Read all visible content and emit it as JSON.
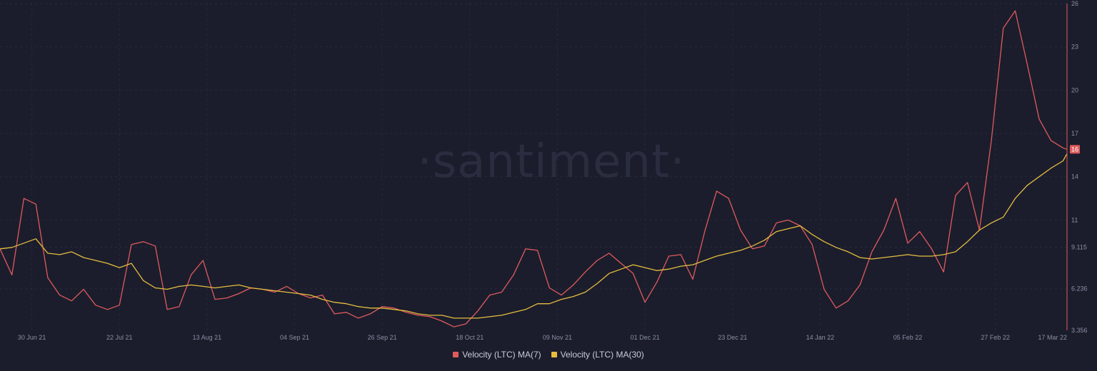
{
  "watermark": "·santiment·",
  "colors": {
    "ma7": "#e05a5d",
    "ma30": "#e5bd3f",
    "background": "#1b1d2c",
    "grid": "#262a3c"
  },
  "chart_data": {
    "type": "line",
    "x": [
      "2021-06-22",
      "2021-06-25",
      "2021-06-28",
      "2021-07-01",
      "2021-07-04",
      "2021-07-07",
      "2021-07-10",
      "2021-07-13",
      "2021-07-16",
      "2021-07-19",
      "2021-07-22",
      "2021-07-25",
      "2021-07-28",
      "2021-07-31",
      "2021-08-03",
      "2021-08-06",
      "2021-08-09",
      "2021-08-12",
      "2021-08-15",
      "2021-08-18",
      "2021-08-21",
      "2021-08-24",
      "2021-08-27",
      "2021-08-30",
      "2021-09-02",
      "2021-09-05",
      "2021-09-08",
      "2021-09-11",
      "2021-09-14",
      "2021-09-17",
      "2021-09-20",
      "2021-09-23",
      "2021-09-26",
      "2021-09-29",
      "2021-10-02",
      "2021-10-05",
      "2021-10-08",
      "2021-10-11",
      "2021-10-14",
      "2021-10-17",
      "2021-10-20",
      "2021-10-23",
      "2021-10-26",
      "2021-10-29",
      "2021-11-01",
      "2021-11-04",
      "2021-11-07",
      "2021-11-10",
      "2021-11-13",
      "2021-11-16",
      "2021-11-19",
      "2021-11-22",
      "2021-11-25",
      "2021-11-28",
      "2021-12-01",
      "2021-12-04",
      "2021-12-07",
      "2021-12-10",
      "2021-12-13",
      "2021-12-16",
      "2021-12-19",
      "2021-12-22",
      "2021-12-25",
      "2021-12-28",
      "2021-12-31",
      "2022-01-03",
      "2022-01-06",
      "2022-01-09",
      "2022-01-12",
      "2022-01-15",
      "2022-01-18",
      "2022-01-21",
      "2022-01-24",
      "2022-01-27",
      "2022-01-30",
      "2022-02-02",
      "2022-02-05",
      "2022-02-08",
      "2022-02-11",
      "2022-02-14",
      "2022-02-17",
      "2022-02-20",
      "2022-02-23",
      "2022-02-26",
      "2022-03-01",
      "2022-03-04",
      "2022-03-07",
      "2022-03-10",
      "2022-03-13",
      "2022-03-16",
      "2022-03-17"
    ],
    "series": [
      {
        "name": "Velocity (LTC) MA(7)",
        "values": [
          9.0,
          7.2,
          12.5,
          12.1,
          7.0,
          5.8,
          5.4,
          6.2,
          5.1,
          4.8,
          5.1,
          9.3,
          9.5,
          9.2,
          4.8,
          5.0,
          7.2,
          8.2,
          5.5,
          5.6,
          5.9,
          6.3,
          6.2,
          6.0,
          6.4,
          5.9,
          5.6,
          5.8,
          4.5,
          4.6,
          4.2,
          4.5,
          5.0,
          4.9,
          4.6,
          4.4,
          4.3,
          4.0,
          3.6,
          3.8,
          4.7,
          5.8,
          6.0,
          7.2,
          9.0,
          8.9,
          6.3,
          5.8,
          6.5,
          7.4,
          8.2,
          8.7,
          8.0,
          7.3,
          5.3,
          6.7,
          8.5,
          8.6,
          6.9,
          10.2,
          13.0,
          12.5,
          10.3,
          9.0,
          9.2,
          10.8,
          11.0,
          10.6,
          9.3,
          6.2,
          4.9,
          5.4,
          6.5,
          8.8,
          10.3,
          12.5,
          9.4,
          10.2,
          9.0,
          7.4,
          12.7,
          13.6,
          10.3,
          16.5,
          24.3,
          25.5,
          21.8,
          18.0,
          16.5,
          16.0,
          15.9
        ]
      },
      {
        "name": "Velocity (LTC) MA(30)",
        "values": [
          9.0,
          9.1,
          9.4,
          9.7,
          8.7,
          8.6,
          8.8,
          8.4,
          8.2,
          8.0,
          7.7,
          8.0,
          6.8,
          6.3,
          6.2,
          6.4,
          6.5,
          6.4,
          6.3,
          6.4,
          6.5,
          6.3,
          6.2,
          6.1,
          6.0,
          5.9,
          5.8,
          5.5,
          5.3,
          5.2,
          5.0,
          4.9,
          4.9,
          4.8,
          4.7,
          4.5,
          4.4,
          4.4,
          4.2,
          4.2,
          4.2,
          4.3,
          4.4,
          4.6,
          4.8,
          5.2,
          5.2,
          5.5,
          5.7,
          6.0,
          6.6,
          7.3,
          7.6,
          7.9,
          7.7,
          7.5,
          7.6,
          7.8,
          7.9,
          8.2,
          8.5,
          8.7,
          8.9,
          9.2,
          9.6,
          10.2,
          10.4,
          10.6,
          10.0,
          9.5,
          9.1,
          8.8,
          8.4,
          8.3,
          8.4,
          8.5,
          8.6,
          8.5,
          8.5,
          8.6,
          8.8,
          9.5,
          10.3,
          10.8,
          11.2,
          12.5,
          13.4,
          14.0,
          14.6,
          15.1,
          15.6
        ]
      }
    ],
    "x_tick_labels": [
      "30 Jun 21",
      "22 Jul 21",
      "13 Aug 21",
      "04 Sep 21",
      "26 Sep 21",
      "18 Oct 21",
      "09 Nov 21",
      "01 Dec 21",
      "23 Dec 21",
      "14 Jan 22",
      "05 Feb 22",
      "27 Feb 22",
      "17 Mar 22"
    ],
    "x_tick_dates": [
      "2021-06-30",
      "2021-07-22",
      "2021-08-13",
      "2021-09-04",
      "2021-09-26",
      "2021-10-18",
      "2021-11-09",
      "2021-12-01",
      "2021-12-23",
      "2022-01-14",
      "2022-02-05",
      "2022-02-27",
      "2022-03-17"
    ],
    "y_tick_labels": [
      "3.356",
      "6.236",
      "9.115",
      "11",
      "14",
      "17",
      "20",
      "23",
      "26"
    ],
    "y_tick_values": [
      3.356,
      6.236,
      9.115,
      11,
      14,
      17,
      20,
      23,
      26
    ],
    "ylim": [
      3.356,
      26
    ],
    "last_value_label": "16",
    "grid": true,
    "legend_position": "bottom-center"
  }
}
